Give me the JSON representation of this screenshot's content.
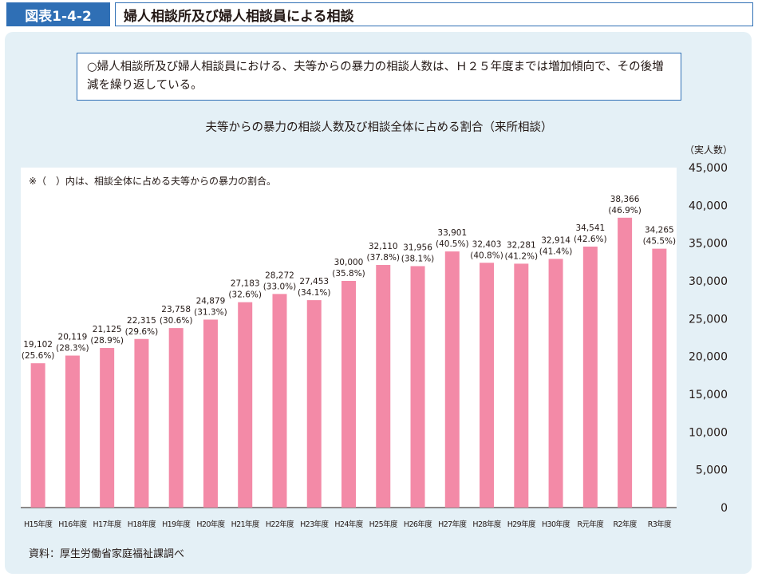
{
  "header": {
    "figure_label": "図表1-4-2",
    "title": "婦人相談所及び婦人相談員による相談"
  },
  "summary": "○婦人相談所及び婦人相談員における、夫等からの暴力の相談人数は、Ｈ２５年度までは増加傾向で、その後増減を繰り返している。",
  "chart_data": {
    "type": "bar",
    "title": "夫等からの暴力の相談人数及び相談全体に占める割合（来所相談）",
    "note": "※（　）内は、相談全体に占める夫等からの暴力の割合。",
    "unit_label": "（実人数）",
    "categories": [
      "H15年度",
      "H16年度",
      "H17年度",
      "H18年度",
      "H19年度",
      "H20年度",
      "H21年度",
      "H22年度",
      "H23年度",
      "H24年度",
      "H25年度",
      "H26年度",
      "H27年度",
      "H28年度",
      "H29年度",
      "H30年度",
      "R元年度",
      "R2年度",
      "R3年度"
    ],
    "values": [
      19102,
      20119,
      21125,
      22315,
      23758,
      24879,
      27183,
      28272,
      27453,
      30000,
      32110,
      31956,
      33901,
      32403,
      32281,
      32914,
      34541,
      38366,
      34265
    ],
    "value_labels": [
      "19,102",
      "20,119",
      "21,125",
      "22,315",
      "23,758",
      "24,879",
      "27,183",
      "28,272",
      "27,453",
      "30,000",
      "32,110",
      "31,956",
      "33,901",
      "32,403",
      "32,281",
      "32,914",
      "34,541",
      "38,366",
      "34,265"
    ],
    "percent_labels": [
      "(25.6%)",
      "(28.3%)",
      "(28.9%)",
      "(29.6%)",
      "(30.6%)",
      "(31.3%)",
      "(32.6%)",
      "(33.0%)",
      "(34.1%)",
      "(35.8%)",
      "(37.8%)",
      "(38.1%)",
      "(40.5%)",
      "(40.8%)",
      "(41.2%)",
      "(41.4%)",
      "(42.6%)",
      "(46.9%)",
      "(45.5%)"
    ],
    "ylim": [
      0,
      45000
    ],
    "yticks": [
      0,
      5000,
      10000,
      15000,
      20000,
      25000,
      30000,
      35000,
      40000,
      45000
    ],
    "ytick_labels": [
      "0",
      "5,000",
      "10,000",
      "15,000",
      "20,000",
      "25,000",
      "30,000",
      "35,000",
      "40,000",
      "45,000"
    ],
    "grid": false,
    "bar_color": "#f38aa7"
  },
  "source": "資料：厚生労働省家庭福祉課調べ"
}
